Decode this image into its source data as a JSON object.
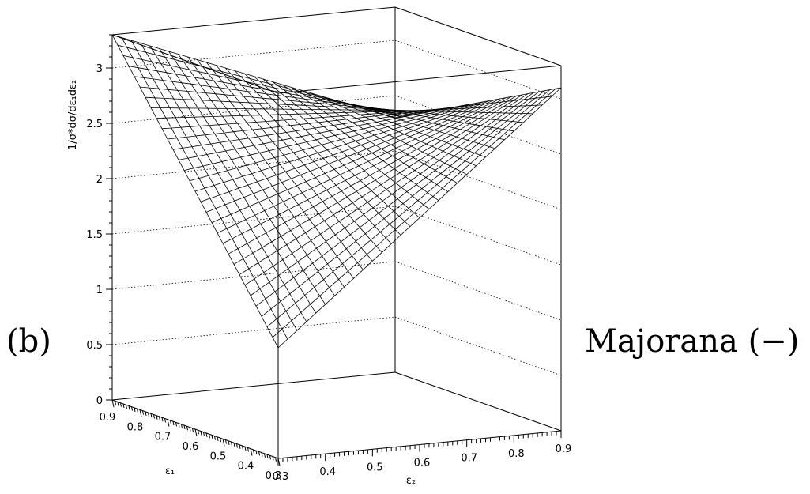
{
  "panel_label": "(b)",
  "right_label": "Majorana (−)",
  "chart_data": {
    "type": "surface",
    "zlabel": "1/σ*dσ/dε₁dε₂",
    "xlabel": "ε₁",
    "ylabel": "ε₂",
    "x_range": [
      0.3,
      0.9
    ],
    "y_range": [
      0.3,
      0.9
    ],
    "z_range": [
      0,
      3.3
    ],
    "z_ticks": [
      0,
      0.5,
      1,
      1.5,
      2,
      2.5,
      3
    ],
    "z_tick_labels": [
      "0",
      "0.5",
      "1",
      "1.5",
      "2",
      "2.5",
      "3"
    ],
    "x_ticks": [
      0.3,
      0.4,
      0.5,
      0.6,
      0.7,
      0.8,
      0.9
    ],
    "x_tick_labels": [
      "0.3",
      "0.4",
      "0.5",
      "0.6",
      "0.7",
      "0.8",
      "0.9"
    ],
    "y_ticks": [
      0.3,
      0.4,
      0.5,
      0.6,
      0.7,
      0.8,
      0.9
    ],
    "y_tick_labels": [
      "0.3",
      "0.4",
      "0.5",
      "0.6",
      "0.7",
      "0.8",
      "0.9"
    ],
    "corner_values": [
      {
        "e1": 0.3,
        "e2": 0.3,
        "z": 1.0
      },
      {
        "e1": 0.9,
        "e2": 0.3,
        "z": 3.3
      },
      {
        "e1": 0.3,
        "e2": 0.9,
        "z": 3.1
      },
      {
        "e1": 0.9,
        "e2": 0.9,
        "z": 2.3
      }
    ],
    "grid_lines": true,
    "mesh_divisions": 30
  }
}
